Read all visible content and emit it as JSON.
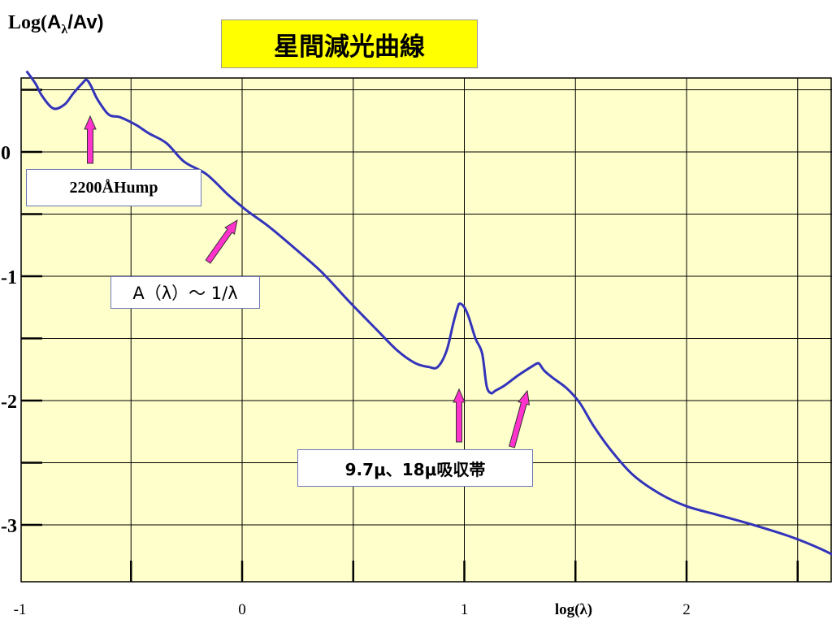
{
  "chart_title": "星間減光曲線",
  "y_axis_title": {
    "prefix": "Log(",
    "a": "A",
    "sub": "λ",
    "suffix": "/Av)"
  },
  "chart_data": {
    "type": "line",
    "xlabel": "log(λ)",
    "ylabel": "Log(Aλ/Av)",
    "xlim": [
      -1,
      2.7
    ],
    "ylim": [
      -3.4,
      0.65
    ],
    "x_ticks": [
      -1,
      0,
      1,
      2
    ],
    "x_tick_labels": [
      "-1",
      "0",
      "1",
      "2"
    ],
    "y_ticks": [
      0,
      -1,
      -2,
      -3
    ],
    "y_tick_labels": [
      "0",
      "-1",
      "-2",
      "-3"
    ],
    "x_gridlines": [
      -0.5,
      0,
      0.5,
      1,
      1.5,
      2,
      2.5
    ],
    "y_gridlines": [
      0.5,
      0,
      -0.5,
      -1,
      -1.5,
      -2,
      -2.5,
      -3
    ],
    "grid": true,
    "background": "#ffffcc",
    "series": [
      {
        "color": "#3333bb",
        "x": [
          -0.97,
          -0.93,
          -0.9,
          -0.85,
          -0.8,
          -0.76,
          -0.72,
          -0.7,
          -0.68,
          -0.65,
          -0.6,
          -0.55,
          -0.48,
          -0.42,
          -0.34,
          -0.26,
          -0.16,
          -0.06,
          0.02,
          0.12,
          0.24,
          0.36,
          0.48,
          0.6,
          0.7,
          0.78,
          0.84,
          0.88,
          0.92,
          0.95,
          0.97,
          0.98,
          1.0,
          1.02,
          1.05,
          1.08,
          1.1,
          1.12,
          1.14,
          1.18,
          1.24,
          1.3,
          1.33,
          1.34,
          1.36,
          1.4,
          1.46,
          1.52,
          1.58,
          1.66,
          1.76,
          1.88,
          2.0,
          2.14,
          2.3,
          2.46,
          2.6,
          2.7
        ],
        "y": [
          0.65,
          0.55,
          0.45,
          0.35,
          0.38,
          0.47,
          0.55,
          0.58,
          0.53,
          0.42,
          0.3,
          0.28,
          0.22,
          0.15,
          0.07,
          -0.08,
          -0.18,
          -0.35,
          -0.47,
          -0.6,
          -0.78,
          -0.97,
          -1.2,
          -1.42,
          -1.6,
          -1.7,
          -1.73,
          -1.73,
          -1.6,
          -1.38,
          -1.25,
          -1.22,
          -1.25,
          -1.33,
          -1.5,
          -1.62,
          -1.88,
          -1.94,
          -1.92,
          -1.88,
          -1.8,
          -1.73,
          -1.7,
          -1.71,
          -1.76,
          -1.82,
          -1.9,
          -2.02,
          -2.2,
          -2.4,
          -2.6,
          -2.75,
          -2.85,
          -2.92,
          -3.0,
          -3.09,
          -3.19,
          -3.28
        ]
      }
    ]
  },
  "annotations": {
    "hump": "2200ÅHump",
    "inverse": "A（λ）～ 1/λ",
    "bands": "9.7μ、18μ吸収帯"
  },
  "colors": {
    "curve": "#3333bb",
    "arrow": "#ff33cc",
    "plot_bg": "#ffffcc",
    "title_bg": "#ffff00"
  }
}
